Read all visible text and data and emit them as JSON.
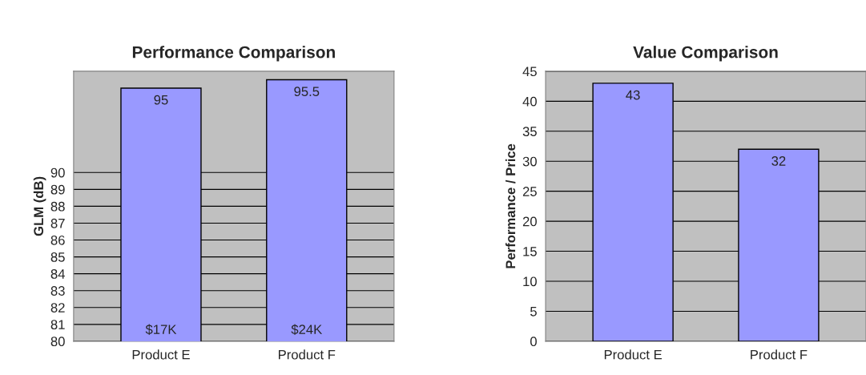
{
  "chart_data": [
    {
      "type": "bar",
      "title": "Performance Comparison",
      "ylabel": "GLM (dB)",
      "categories": [
        "Product E",
        "Product F"
      ],
      "series": [
        {
          "color": "#9999ff",
          "values": [
            95,
            95.5
          ]
        }
      ],
      "ylim": [
        80,
        96
      ],
      "yticks": [
        80,
        81,
        82,
        83,
        84,
        85,
        86,
        87,
        88,
        89,
        90
      ],
      "grid": "y",
      "data_labels": true,
      "annotations": [
        "$17K",
        "$24K"
      ]
    },
    {
      "type": "bar",
      "title": "Value Comparison",
      "ylabel": "Performance / Price",
      "categories": [
        "Product E",
        "Product F"
      ],
      "series": [
        {
          "color": "#9999ff",
          "values": [
            43,
            32
          ]
        }
      ],
      "ylim": [
        0,
        45
      ],
      "yticks": [
        0,
        5,
        10,
        15,
        20,
        25,
        30,
        35,
        40,
        45
      ],
      "grid": "y",
      "data_labels": true
    }
  ]
}
